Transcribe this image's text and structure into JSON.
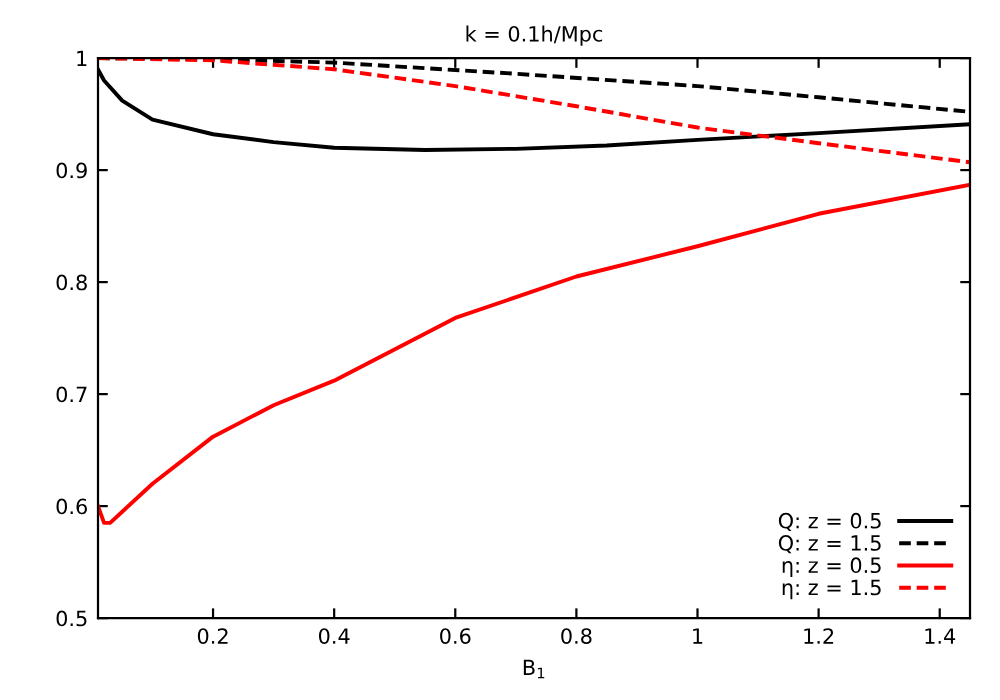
{
  "chart_data": {
    "type": "line",
    "title": "k = 0.1h/Mpc",
    "xlabel": "B$_{1}$",
    "xlim": [
      0.01,
      1.45
    ],
    "ylim": [
      0.5,
      1
    ],
    "xticks": [
      0.2,
      0.4,
      0.6,
      0.8,
      1,
      1.2,
      1.4
    ],
    "yticks": [
      0.5,
      0.6,
      0.7,
      0.8,
      0.9,
      1
    ],
    "grid": false,
    "legend": "bottom right",
    "series": [
      {
        "name": "Q: z = 0.5",
        "color": "#000000",
        "line_style": "solid",
        "x": [
          0.01,
          0.02,
          0.05,
          0.1,
          0.2,
          0.3,
          0.4,
          0.55,
          0.7,
          0.85,
          1.0,
          1.2,
          1.45
        ],
        "values": [
          0.99,
          0.98,
          0.962,
          0.945,
          0.932,
          0.925,
          0.92,
          0.918,
          0.919,
          0.922,
          0.927,
          0.933,
          0.941
        ]
      },
      {
        "name": "Q: z = 1.5",
        "color": "#000000",
        "line_style": "dashed",
        "x": [
          0.01,
          0.2,
          0.4,
          0.7,
          1.0,
          1.2,
          1.45
        ],
        "values": [
          1.0,
          0.999,
          0.996,
          0.986,
          0.975,
          0.965,
          0.952
        ]
      },
      {
        "name": "η: z = 0.5",
        "color": "#ff0000",
        "line_style": "solid",
        "x": [
          0.01,
          0.02,
          0.03,
          0.05,
          0.1,
          0.2,
          0.3,
          0.4,
          0.6,
          0.8,
          1.0,
          1.2,
          1.45
        ],
        "values": [
          0.6,
          0.585,
          0.585,
          0.595,
          0.62,
          0.662,
          0.69,
          0.712,
          0.768,
          0.805,
          0.832,
          0.861,
          0.887
        ]
      },
      {
        "name": "η: z = 1.5",
        "color": "#ff0000",
        "line_style": "dashed",
        "x": [
          0.01,
          0.2,
          0.4,
          0.6,
          0.8,
          1.0,
          1.2,
          1.45
        ],
        "values": [
          1.0,
          0.998,
          0.99,
          0.975,
          0.957,
          0.938,
          0.924,
          0.907
        ]
      }
    ]
  }
}
